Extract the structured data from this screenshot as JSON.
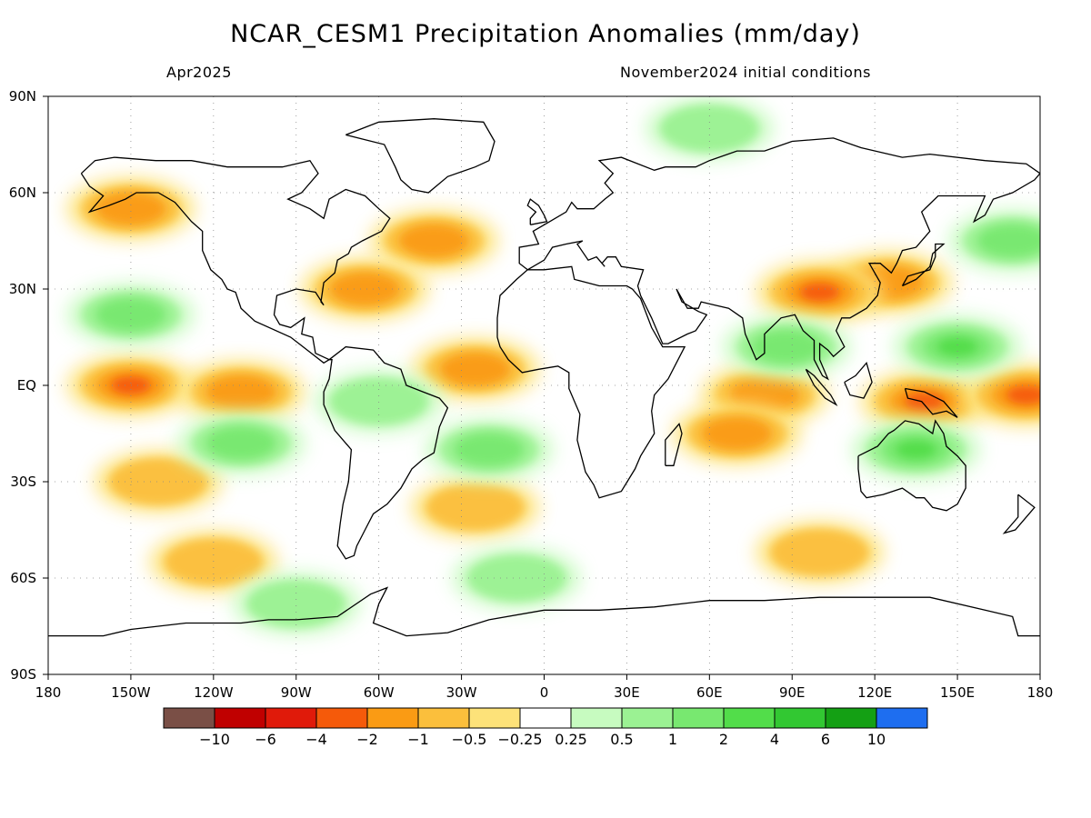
{
  "header": {
    "title": "NCAR_CESM1 Precipitation Anomalies (mm/day)",
    "subtitle_left": "Apr2025",
    "subtitle_right": "November2024 initial conditions"
  },
  "map": {
    "lat_labels": [
      "90N",
      "60N",
      "30N",
      "EQ",
      "30S",
      "60S",
      "90S"
    ],
    "lon_labels": [
      "180",
      "150W",
      "120W",
      "90W",
      "60W",
      "30W",
      "0",
      "30E",
      "60E",
      "90E",
      "120E",
      "150E",
      "180"
    ],
    "ocean_color": "#ffffff",
    "coastline_color": "#000000",
    "grid": "dotted"
  },
  "colorbar": {
    "colors": [
      "#7a4f46",
      "#c00000",
      "#e01a0a",
      "#f55a0a",
      "#fa9b14",
      "#fbbf3c",
      "#fde279",
      "#ffffff",
      "#c7fbc0",
      "#9bf293",
      "#78e870",
      "#52dd4a",
      "#32c832",
      "#14a014",
      "#1e6ef0"
    ],
    "labels": [
      "-10",
      "-6",
      "-4",
      "-2",
      "-1",
      "-0.5",
      "-0.25",
      "0.25",
      "0.5",
      "1",
      "2",
      "4",
      "6",
      "10"
    ]
  },
  "anomalies": [
    {
      "kind": "dry",
      "level": 3,
      "region": "equatorial-central-pacific",
      "lon": -150,
      "lat": 0
    },
    {
      "kind": "dry",
      "level": 2,
      "region": "equatorial-east-pacific",
      "lon": -110,
      "lat": -2
    },
    {
      "kind": "dry",
      "level": 2,
      "region": "tropical-atlantic",
      "lon": -25,
      "lat": 5
    },
    {
      "kind": "dry",
      "level": 2,
      "region": "indian-ocean-equatorial",
      "lon": 80,
      "lat": -3
    },
    {
      "kind": "dry",
      "level": 3,
      "region": "maritime-continent",
      "lon": 138,
      "lat": -5
    },
    {
      "kind": "dry",
      "level": 3,
      "region": "western-pacific-dateline",
      "lon": 175,
      "lat": -3
    },
    {
      "kind": "dry",
      "level": 2,
      "region": "gulf-of-alaska",
      "lon": -150,
      "lat": 55
    },
    {
      "kind": "dry",
      "level": 2,
      "region": "north-atlantic",
      "lon": -40,
      "lat": 45
    },
    {
      "kind": "dry",
      "level": 2,
      "region": "southeast-us",
      "lon": -65,
      "lat": 30
    },
    {
      "kind": "dry",
      "level": 2,
      "region": "east-asia",
      "lon": 125,
      "lat": 32
    },
    {
      "kind": "dry",
      "level": 3,
      "region": "tibet",
      "lon": 100,
      "lat": 29
    },
    {
      "kind": "dry",
      "level": 2,
      "region": "south-indian-ocean",
      "lon": 70,
      "lat": -15
    },
    {
      "kind": "dry",
      "level": 1,
      "region": "south-atlantic",
      "lon": -25,
      "lat": -38
    },
    {
      "kind": "dry",
      "level": 1,
      "region": "southern-ocean-pacific",
      "lon": -120,
      "lat": -55
    },
    {
      "kind": "dry",
      "level": 1,
      "region": "southern-ocean-indian",
      "lon": 100,
      "lat": -52
    },
    {
      "kind": "dry",
      "level": 1,
      "region": "south-pacific",
      "lon": -140,
      "lat": -30
    },
    {
      "kind": "wet",
      "level": 3,
      "region": "west-pacific-warm-pool",
      "lon": 150,
      "lat": 12
    },
    {
      "kind": "wet",
      "level": 3,
      "region": "australia",
      "lon": 135,
      "lat": -20
    },
    {
      "kind": "wet",
      "level": 2,
      "region": "south-atlantic-subtropics",
      "lon": -20,
      "lat": -20
    },
    {
      "kind": "wet",
      "level": 2,
      "region": "southeast-pacific",
      "lon": -110,
      "lat": -18
    },
    {
      "kind": "wet",
      "level": 2,
      "region": "subtropical-north-pacific",
      "lon": -150,
      "lat": 22
    },
    {
      "kind": "wet",
      "level": 2,
      "region": "bay-of-bengal",
      "lon": 88,
      "lat": 12
    },
    {
      "kind": "wet",
      "level": 1,
      "region": "amazon",
      "lon": -60,
      "lat": -5
    },
    {
      "kind": "wet",
      "level": 1,
      "region": "southern-ocean-atlantic",
      "lon": -10,
      "lat": -60
    },
    {
      "kind": "wet",
      "level": 1,
      "region": "arctic",
      "lon": 60,
      "lat": 80
    },
    {
      "kind": "wet",
      "level": 1,
      "region": "antarctic-coast",
      "lon": -90,
      "lat": -68
    },
    {
      "kind": "wet",
      "level": 2,
      "region": "central-north-pacific",
      "lon": 170,
      "lat": 45
    }
  ]
}
